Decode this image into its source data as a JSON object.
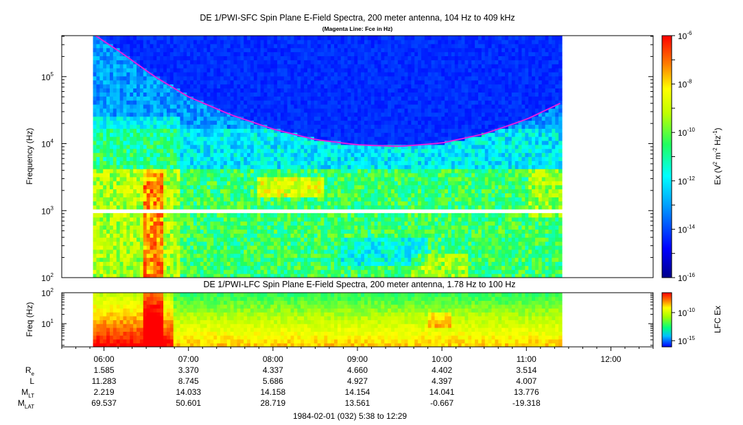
{
  "chart_data": [
    {
      "type": "heatmap",
      "title": "DE 1/PWI-SFC  Spin Plane E-Field Spectra, 200 meter antenna, 104 Hz to 409 kHz",
      "subtitle": "(Magenta Line: Fce in Hz)",
      "ylabel": "Frequency (Hz)",
      "y_scale": "log",
      "ylim": [
        100,
        409000
      ],
      "y_ticks": [
        "10",
        "10",
        "10",
        "10"
      ],
      "y_tick_exponents": [
        "2",
        "3",
        "4",
        "5"
      ],
      "colorbar": {
        "label_parts": [
          "Ex (V",
          "2",
          " m",
          "-2",
          " Hz",
          "-1",
          ")"
        ],
        "scale": "log",
        "range": [
          1e-16,
          1e-06
        ],
        "tick_base": [
          "10",
          "10",
          "10",
          "10",
          "10",
          "10"
        ],
        "tick_exponents": [
          "-6",
          "-8",
          "-10",
          "-12",
          "-14",
          "-16"
        ]
      },
      "data_gap_hz": 1000,
      "fce_line": {
        "color": "#e020e0",
        "x_hours": [
          5.9,
          6.2,
          6.6,
          7.0,
          7.5,
          8.0,
          8.5,
          9.0,
          9.5,
          10.0,
          10.5,
          11.0,
          11.4
        ],
        "y_hz": [
          409000,
          230000,
          100000,
          50000,
          27000,
          16500,
          11500,
          9600,
          9100,
          10200,
          14000,
          23000,
          40000
        ]
      }
    },
    {
      "type": "heatmap",
      "title": "DE 1/PWI-LFC  Spin Plane E-Field Spectra, 200 meter antenna, 1.78 Hz to 100 Hz",
      "ylabel": "Freq (Hz)",
      "y_scale": "log",
      "ylim": [
        1.78,
        100
      ],
      "y_ticks": [
        "10",
        "10"
      ],
      "y_tick_exponents": [
        "1",
        "2"
      ],
      "colorbar": {
        "label": "LFC Ex",
        "scale": "log",
        "tick_base": [
          "10",
          "10"
        ],
        "tick_exponents": [
          "-10",
          "-15"
        ]
      }
    }
  ],
  "x_axis": {
    "x_range_hours": [
      5.5,
      12.5
    ],
    "data_range_hours": [
      5.87,
      11.42
    ],
    "tick_labels": [
      "06:00",
      "07:00",
      "08:00",
      "09:00",
      "10:00",
      "11:00",
      "12:00"
    ],
    "tick_hours": [
      6,
      7,
      8,
      9,
      10,
      11,
      12
    ]
  },
  "ephemeris": {
    "rows": [
      {
        "label": "R",
        "label_sub": "e",
        "values": [
          "1.585",
          "3.370",
          "4.337",
          "4.660",
          "4.402",
          "3.514"
        ]
      },
      {
        "label": "L",
        "label_sub": "",
        "values": [
          "11.283",
          "8.745",
          "5.686",
          "4.927",
          "4.397",
          "4.007"
        ]
      },
      {
        "label": "M",
        "label_sub": "LT",
        "values": [
          "2.219",
          "14.033",
          "14.158",
          "14.154",
          "14.041",
          "13.776"
        ]
      },
      {
        "label": "M",
        "label_sub": "LAT",
        "values": [
          "69.537",
          "50.601",
          "28.719",
          "13.561",
          "-0.667",
          "-19.318"
        ]
      }
    ]
  },
  "footer": "1984-02-01 (032) 5:38 to 12:29"
}
